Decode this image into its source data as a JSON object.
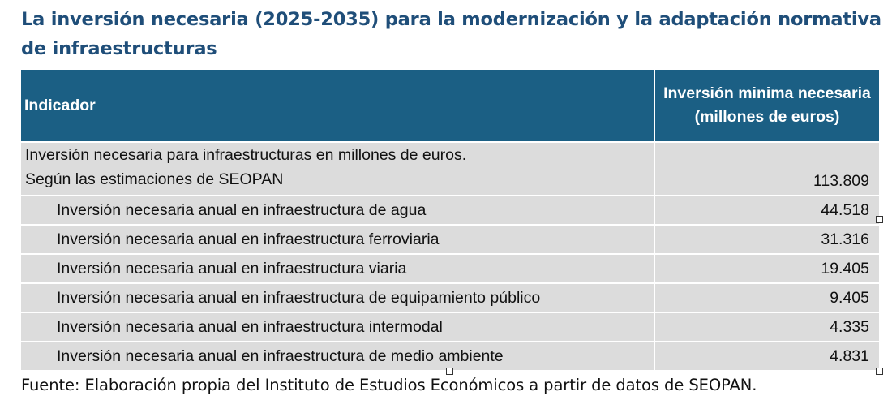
{
  "title": "La inversión necesaria (2025-2035) para la modernización y la adaptación normativa de infraestructuras",
  "table": {
    "headers": {
      "indicator": "Indicador",
      "value": "Inversión minima necesaria (millones de euros)"
    },
    "rows": [
      {
        "label_line1": "Inversión necesaria para infraestructuras en millones de euros.",
        "label_line2": "Según las estimaciones de SEOPAN",
        "value": "113.809"
      },
      {
        "label": "Inversión necesaria anual en infraestructura de agua",
        "value": "44.518"
      },
      {
        "label": "Inversión necesaria anual en infraestructura ferroviaria",
        "value": "31.316"
      },
      {
        "label": "Inversión necesaria anual en infraestructura viaria",
        "value": "19.405"
      },
      {
        "label": "Inversión necesaria anual en infraestructura de equipamiento público",
        "value": "9.405"
      },
      {
        "label": "Inversión necesaria anual en infraestructura intermodal",
        "value": "4.335"
      },
      {
        "label": "Inversión necesaria anual en infraestructura de medio ambiente",
        "value": "4.831"
      }
    ]
  },
  "source": "Fuente: Elaboración propia del Instituto de Estudios Económicos a partir de datos de SEOPAN.",
  "colors": {
    "title": "#1f4e79",
    "header_bg": "#1b5f84",
    "header_text": "#ffffff",
    "row_bg": "#dcdcdc"
  }
}
